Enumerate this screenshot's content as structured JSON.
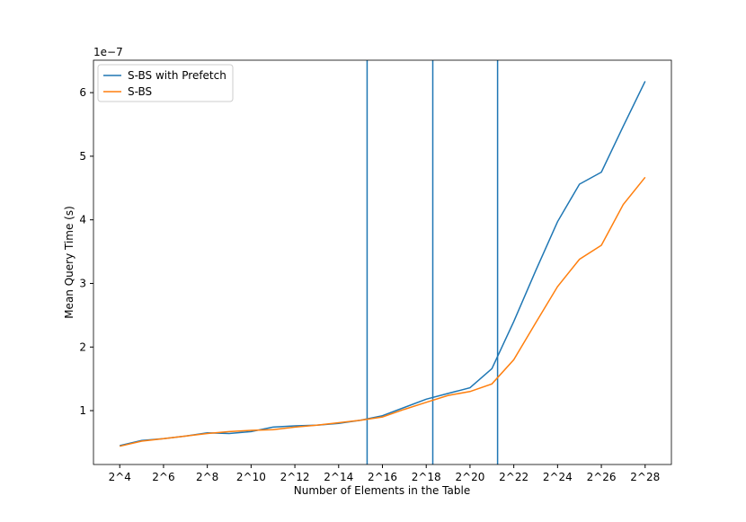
{
  "chart_data": {
    "type": "line",
    "x_label": "Number of Elements in the Table",
    "y_label": "Mean Query Time (s)",
    "y_offset_label": "1e−7",
    "x": [
      4,
      5,
      6,
      7,
      8,
      9,
      10,
      11,
      12,
      13,
      14,
      15,
      16,
      17,
      18,
      19,
      20,
      21,
      22,
      23,
      24,
      25,
      26,
      27,
      28
    ],
    "series": [
      {
        "name": "S-BS with Prefetch",
        "color": "#1f77b4",
        "values": [
          0.45,
          0.53,
          0.56,
          0.6,
          0.65,
          0.64,
          0.67,
          0.74,
          0.76,
          0.77,
          0.8,
          0.85,
          0.92,
          1.05,
          1.18,
          1.27,
          1.36,
          1.66,
          2.4,
          3.2,
          3.97,
          4.56,
          4.75,
          5.47,
          6.18
        ]
      },
      {
        "name": "S-BS",
        "color": "#ff7f0e",
        "values": [
          0.44,
          0.52,
          0.56,
          0.6,
          0.64,
          0.67,
          0.69,
          0.7,
          0.74,
          0.77,
          0.81,
          0.85,
          0.9,
          1.02,
          1.13,
          1.24,
          1.3,
          1.42,
          1.8,
          2.38,
          2.95,
          3.38,
          3.6,
          4.24,
          4.67
        ]
      }
    ],
    "vlines": [
      15.3,
      18.3,
      21.26
    ],
    "vline_color": "#1f77b4",
    "xlim": [
      2.8,
      29.2
    ],
    "ylim": [
      0.153,
      6.51
    ],
    "xticks": [
      {
        "value": 4,
        "label": "2^4"
      },
      {
        "value": 6,
        "label": "2^6"
      },
      {
        "value": 8,
        "label": "2^8"
      },
      {
        "value": 10,
        "label": "2^10"
      },
      {
        "value": 12,
        "label": "2^12"
      },
      {
        "value": 14,
        "label": "2^14"
      },
      {
        "value": 16,
        "label": "2^16"
      },
      {
        "value": 18,
        "label": "2^18"
      },
      {
        "value": 20,
        "label": "2^20"
      },
      {
        "value": 22,
        "label": "2^22"
      },
      {
        "value": 24,
        "label": "2^24"
      },
      {
        "value": 26,
        "label": "2^26"
      },
      {
        "value": 28,
        "label": "2^28"
      }
    ],
    "yticks": [
      1,
      2,
      3,
      4,
      5,
      6
    ],
    "legend": "upper left"
  }
}
